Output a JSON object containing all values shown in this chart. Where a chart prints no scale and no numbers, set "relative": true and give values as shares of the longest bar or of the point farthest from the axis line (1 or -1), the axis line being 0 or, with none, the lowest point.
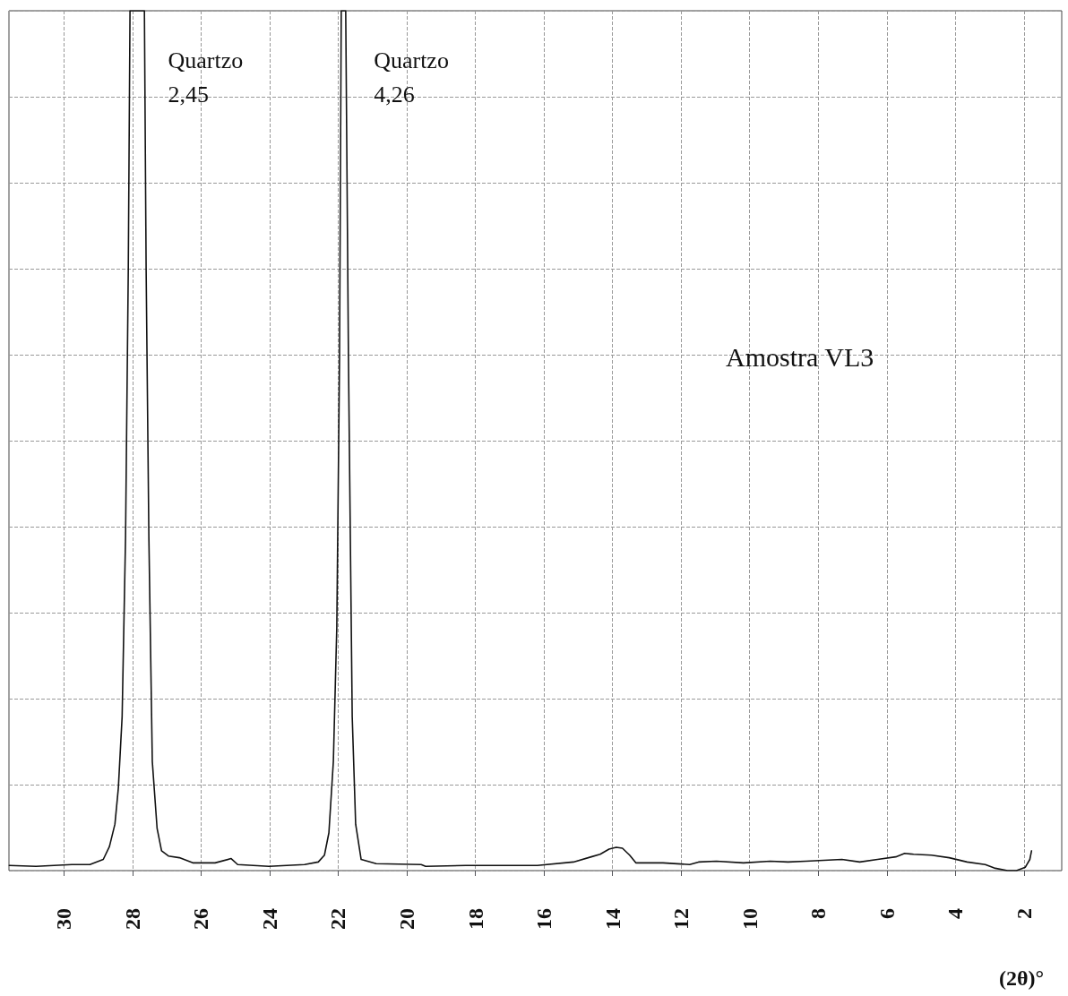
{
  "chart_data": {
    "type": "line",
    "title": "Amostra VL3",
    "xlabel": "(2θ)°",
    "relative": true,
    "grid": true,
    "marker": "none",
    "line_style": "solid",
    "xlim": [
      31.6,
      0.9
    ],
    "xticks": [
      30,
      28,
      26,
      24,
      22,
      20,
      18,
      16,
      14,
      12,
      10,
      8,
      6,
      4,
      2
    ],
    "annotations": [
      {
        "text": "Quartzo\n2,45",
        "x": 27.85,
        "y": 1
      },
      {
        "text": "Quartzo\n4,26",
        "x": 21.85,
        "y": 1
      }
    ],
    "series": [
      {
        "color": "#111111",
        "x": [
          31.59,
          30.81,
          29.77,
          29.24,
          28.85,
          28.67,
          28.51,
          28.41,
          28.3,
          28.2,
          28.12,
          28.07,
          27.65,
          27.6,
          27.52,
          27.42,
          27.28,
          27.15,
          26.95,
          26.63,
          26.24,
          25.59,
          25.12,
          24.93,
          24.02,
          22.98,
          22.58,
          22.4,
          22.27,
          22.14,
          22.04,
          21.96,
          21.91,
          21.78,
          21.7,
          21.59,
          21.49,
          21.33,
          20.89,
          19.58,
          19.45,
          18.28,
          16.19,
          15.14,
          14.62,
          14.36,
          14.1,
          13.89,
          13.71,
          13.5,
          13.32,
          12.53,
          11.75,
          11.49,
          10.97,
          10.18,
          9.4,
          8.88,
          8.36,
          7.31,
          6.79,
          6.27,
          5.74,
          5.48,
          5.22,
          4.7,
          4.18,
          3.66,
          3.13,
          2.87,
          2.48,
          2.22,
          1.96,
          1.83,
          1.78
        ],
        "values": [
          0.006,
          0.005,
          0.007,
          0.007,
          0.013,
          0.028,
          0.054,
          0.096,
          0.179,
          0.388,
          0.7,
          1,
          1,
          0.7,
          0.388,
          0.127,
          0.049,
          0.023,
          0.017,
          0.015,
          0.009,
          0.009,
          0.014,
          0.007,
          0.005,
          0.007,
          0.01,
          0.018,
          0.044,
          0.127,
          0.283,
          0.596,
          1,
          1,
          0.596,
          0.179,
          0.054,
          0.013,
          0.008,
          0.007,
          0.005,
          0.006,
          0.006,
          0.01,
          0.016,
          0.019,
          0.025,
          0.027,
          0.026,
          0.018,
          0.009,
          0.009,
          0.007,
          0.01,
          0.011,
          0.009,
          0.011,
          0.01,
          0.011,
          0.013,
          0.01,
          0.013,
          0.016,
          0.02,
          0.019,
          0.018,
          0.015,
          0.01,
          0.007,
          0.003,
          0,
          0,
          0.004,
          0.013,
          0.023
        ]
      }
    ]
  }
}
